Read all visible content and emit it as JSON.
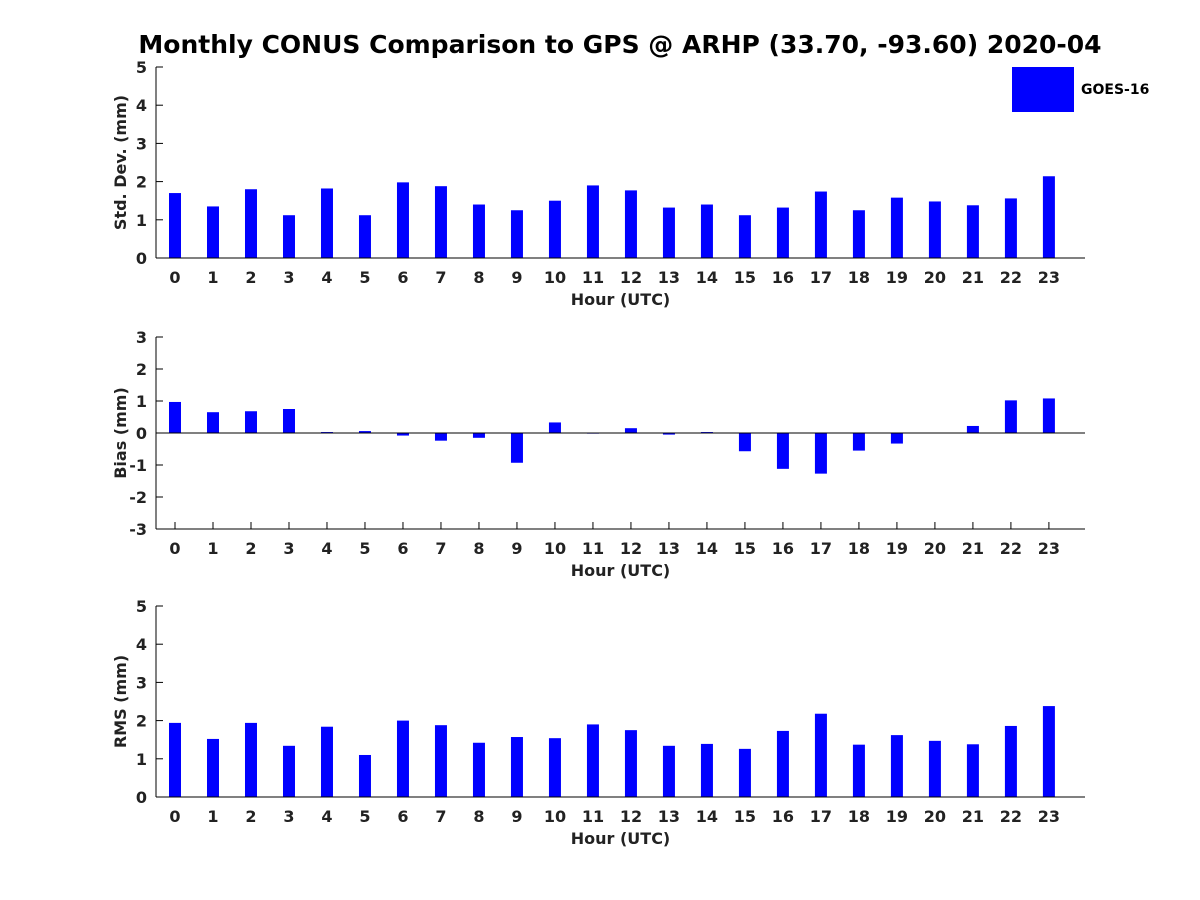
{
  "title": "Monthly CONUS Comparison to GPS @ ARHP (33.70, -93.60) 2020-04",
  "legend": {
    "label": "GOES-16",
    "color": "#0000ff"
  },
  "chart_data": [
    {
      "type": "bar",
      "xlabel": "Hour (UTC)",
      "ylabel": "Std. Dev. (mm)",
      "categories": [
        "0",
        "1",
        "2",
        "3",
        "4",
        "5",
        "6",
        "7",
        "8",
        "9",
        "10",
        "11",
        "12",
        "13",
        "14",
        "15",
        "16",
        "17",
        "18",
        "19",
        "20",
        "21",
        "22",
        "23"
      ],
      "series": [
        {
          "name": "GOES-16",
          "color": "#0000ff",
          "values": [
            1.7,
            1.35,
            1.8,
            1.12,
            1.82,
            1.12,
            1.98,
            1.88,
            1.4,
            1.25,
            1.5,
            1.9,
            1.77,
            1.32,
            1.4,
            1.12,
            1.32,
            1.74,
            1.25,
            1.58,
            1.48,
            1.38,
            1.56,
            2.14
          ]
        }
      ],
      "ylim": [
        0,
        5
      ],
      "yticks": [
        "0",
        "1",
        "2",
        "3",
        "4",
        "5"
      ],
      "legend": "top-right",
      "grid": false
    },
    {
      "type": "bar",
      "xlabel": "Hour (UTC)",
      "ylabel": "Bias (mm)",
      "categories": [
        "0",
        "1",
        "2",
        "3",
        "4",
        "5",
        "6",
        "7",
        "8",
        "9",
        "10",
        "11",
        "12",
        "13",
        "14",
        "15",
        "16",
        "17",
        "18",
        "19",
        "20",
        "21",
        "22",
        "23"
      ],
      "series": [
        {
          "name": "GOES-16",
          "color": "#0000ff",
          "values": [
            0.97,
            0.65,
            0.68,
            0.75,
            0.03,
            0.06,
            -0.08,
            -0.24,
            -0.15,
            -0.93,
            0.33,
            -0.02,
            0.15,
            -0.05,
            0.03,
            -0.57,
            -1.12,
            -1.27,
            -0.55,
            -0.33,
            0.0,
            0.22,
            1.02,
            1.08
          ]
        }
      ],
      "ylim": [
        -3,
        3
      ],
      "yticks": [
        "-3",
        "-2",
        "-1",
        "0",
        "1",
        "2",
        "3"
      ],
      "grid": false
    },
    {
      "type": "bar",
      "xlabel": "Hour (UTC)",
      "ylabel": "RMS (mm)",
      "categories": [
        "0",
        "1",
        "2",
        "3",
        "4",
        "5",
        "6",
        "7",
        "8",
        "9",
        "10",
        "11",
        "12",
        "13",
        "14",
        "15",
        "16",
        "17",
        "18",
        "19",
        "20",
        "21",
        "22",
        "23"
      ],
      "series": [
        {
          "name": "GOES-16",
          "color": "#0000ff",
          "values": [
            1.94,
            1.52,
            1.94,
            1.34,
            1.84,
            1.1,
            2.0,
            1.88,
            1.42,
            1.57,
            1.54,
            1.9,
            1.75,
            1.34,
            1.39,
            1.26,
            1.73,
            2.18,
            1.37,
            1.62,
            1.47,
            1.38,
            1.86,
            2.38
          ]
        }
      ],
      "ylim": [
        0,
        5
      ],
      "yticks": [
        "0",
        "1",
        "2",
        "3",
        "4",
        "5"
      ],
      "grid": false
    }
  ]
}
